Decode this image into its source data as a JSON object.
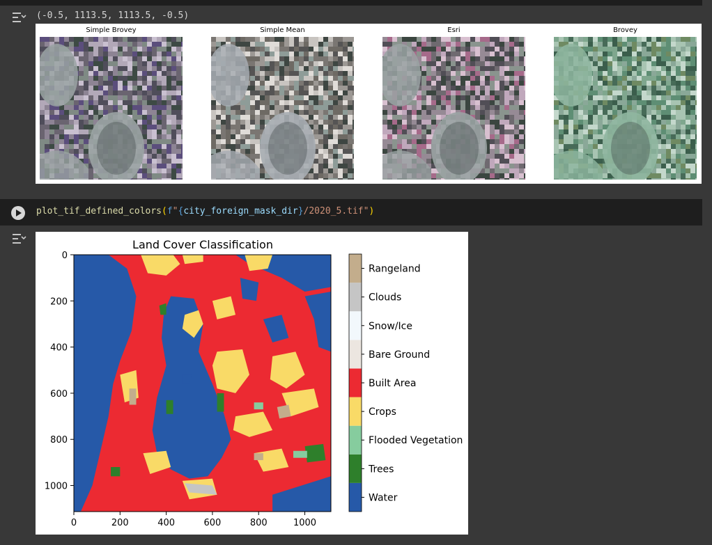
{
  "cell1": {
    "output_text": "(-0.5, 1113.5, 1113.5, -0.5)",
    "images": [
      {
        "title": "Simple Brovey",
        "palette": [
          "#6a6470",
          "#8d8494",
          "#4f4d5a",
          "#b2a8b8",
          "#3d4a44",
          "#7f8a84",
          "#c9c0d0",
          "#5b4e7c"
        ]
      },
      {
        "title": "Simple Mean",
        "palette": [
          "#7a7672",
          "#9c9894",
          "#555454",
          "#c8c4c0",
          "#3e4642",
          "#8e9c98",
          "#e0dcd8",
          "#6e6a64"
        ]
      },
      {
        "title": "Esri",
        "palette": [
          "#6f6a70",
          "#968a95",
          "#514e56",
          "#c0a8bc",
          "#3b4640",
          "#8a948e",
          "#d8c0d0",
          "#a66a8a"
        ]
      },
      {
        "title": "Brovey",
        "palette": [
          "#5e8e74",
          "#7fa78e",
          "#476b58",
          "#a8c4b2",
          "#3b5e4c",
          "#8aa898",
          "#c4d8cc",
          "#6f8a62"
        ]
      }
    ]
  },
  "cell2": {
    "code": {
      "fn": "plot_tif_defined_colors",
      "open": "(",
      "fprefix": "f",
      "q1": "\"",
      "brace_open": "{",
      "var": "city_foreign_mask_dir",
      "brace_close": "}",
      "path": "/2020_5.tif",
      "q2": "\"",
      "close": ")"
    }
  },
  "chart_data": {
    "type": "heatmap",
    "title": "Land Cover Classification",
    "xlim": [
      0,
      1113
    ],
    "ylim": [
      1113,
      0
    ],
    "xticks": [
      0,
      200,
      400,
      600,
      800,
      1000
    ],
    "yticks": [
      0,
      200,
      400,
      600,
      800,
      1000
    ],
    "colorbar": [
      {
        "label": "Water",
        "color": "#2659a8"
      },
      {
        "label": "Trees",
        "color": "#2e7f2b"
      },
      {
        "label": "Flooded Vegetation",
        "color": "#86cc9e"
      },
      {
        "label": "Crops",
        "color": "#f9da67"
      },
      {
        "label": "Built Area",
        "color": "#ec2a32"
      },
      {
        "label": "Bare Ground",
        "color": "#ece6e0"
      },
      {
        "label": "Snow/Ice",
        "color": "#f2f8fc"
      },
      {
        "label": "Clouds",
        "color": "#c5c5c5"
      },
      {
        "label": "Rangeland",
        "color": "#c3ad8c"
      }
    ]
  }
}
